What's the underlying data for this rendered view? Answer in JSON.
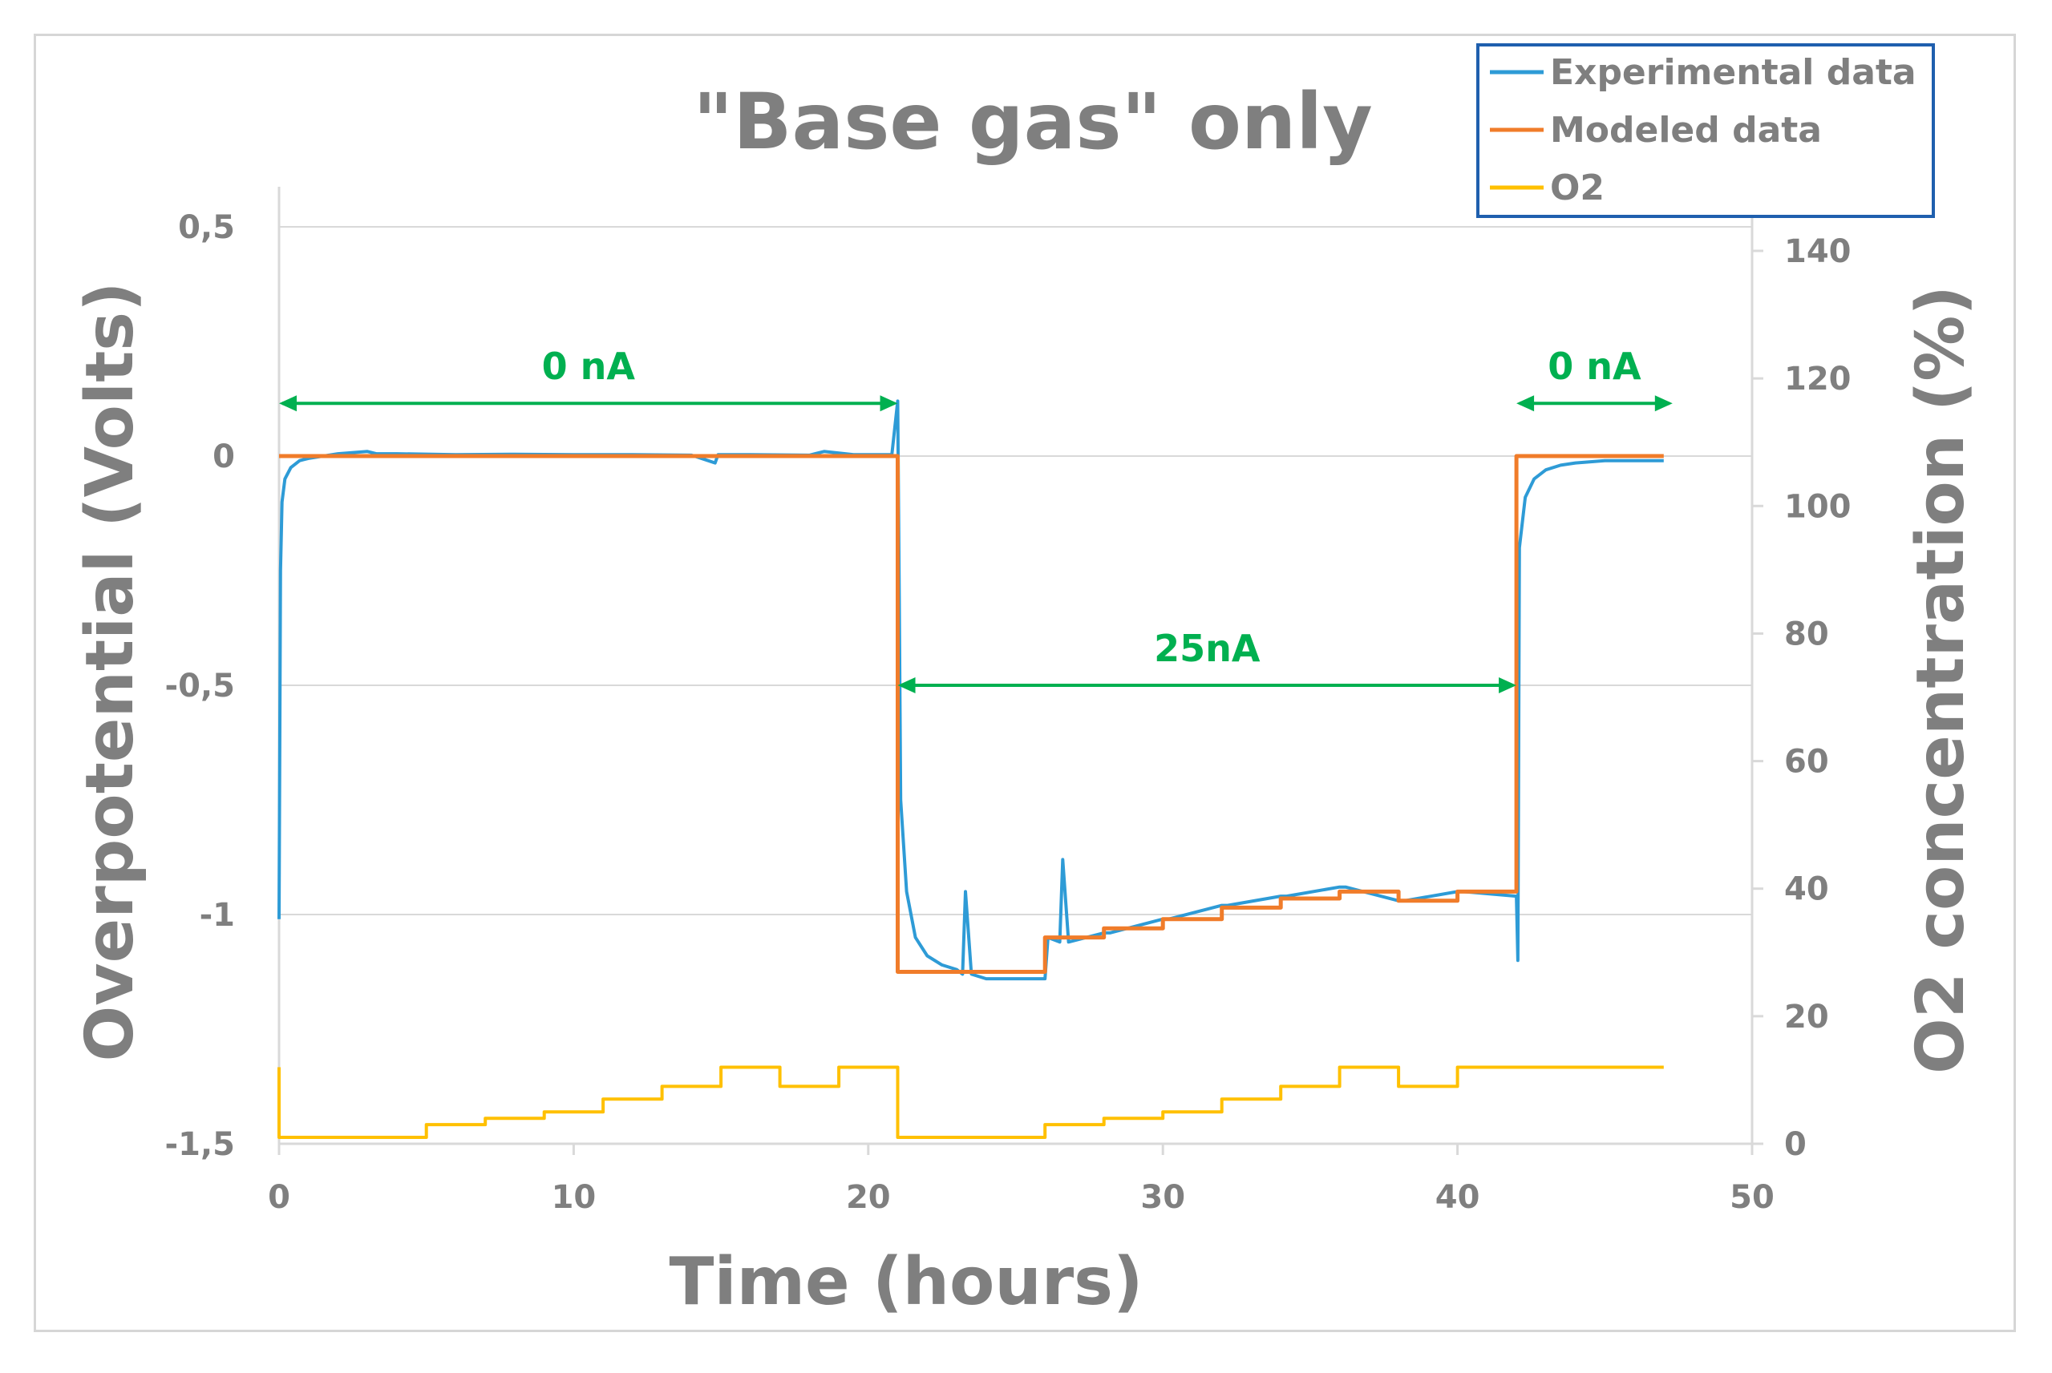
{
  "chart_data": {
    "type": "line",
    "title": "\"Base gas\" only",
    "xlabel": "Time (hours)",
    "ylabel": "Overpotential (Volts)",
    "y2label": "O2 concentration (%)",
    "xlim": [
      0,
      50
    ],
    "ylim": [
      -1.5,
      0.5
    ],
    "y2lim": [
      0,
      140
    ],
    "x_ticks": [
      "0",
      "10",
      "20",
      "30",
      "40",
      "50"
    ],
    "y_ticks": [
      "0,5",
      "0",
      "-0,5",
      "-1",
      "-1,5"
    ],
    "y2_ticks": [
      "140",
      "120",
      "100",
      "80",
      "60",
      "40",
      "20",
      "0"
    ],
    "grid": "horizontal",
    "legend_position": "top-right",
    "colors": {
      "experimental": "#2e9bd6",
      "modeled": "#f07c2a",
      "o2": "#ffc000",
      "annotation": "#00b050",
      "axis_text": "#7f7f7f",
      "grid": "#d9d9d9",
      "legend_border": "#1f5fae"
    },
    "series": [
      {
        "name": "Experimental data",
        "axis": "left",
        "x": [
          0,
          0.05,
          0.1,
          0.2,
          0.4,
          0.7,
          1.0,
          1.5,
          2.0,
          3.0,
          3.3,
          4.0,
          6.0,
          8.0,
          10.0,
          12.0,
          14.0,
          14.8,
          14.9,
          16.0,
          18.0,
          18.5,
          19.5,
          20.8,
          21.0,
          21.05,
          21.1,
          21.3,
          21.6,
          22.0,
          22.5,
          23.0,
          23.2,
          23.3,
          23.5,
          24.0,
          25.0,
          26.0,
          26.1,
          26.5,
          26.6,
          26.8,
          28.0,
          28.2,
          30.0,
          30.2,
          32.0,
          32.2,
          34.0,
          34.2,
          36.0,
          36.2,
          38.0,
          38.2,
          40.0,
          40.2,
          42.0,
          42.05,
          42.1,
          42.3,
          42.6,
          43.0,
          43.5,
          44.0,
          45.0,
          46.0,
          47.0
        ],
        "values": [
          -1.01,
          -0.25,
          -0.1,
          -0.05,
          -0.025,
          -0.01,
          -0.005,
          0.0,
          0.005,
          0.01,
          0.005,
          0.005,
          0.003,
          0.004,
          0.003,
          0.003,
          0.002,
          -0.015,
          0.003,
          0.003,
          0.002,
          0.01,
          0.003,
          0.003,
          0.12,
          -0.3,
          -0.75,
          -0.95,
          -1.05,
          -1.09,
          -1.11,
          -1.12,
          -1.13,
          -0.95,
          -1.13,
          -1.14,
          -1.14,
          -1.14,
          -1.05,
          -1.06,
          -0.88,
          -1.06,
          -1.04,
          -1.04,
          -1.01,
          -1.01,
          -0.98,
          -0.98,
          -0.96,
          -0.96,
          -0.94,
          -0.94,
          -0.97,
          -0.97,
          -0.95,
          -0.95,
          -0.96,
          -1.1,
          -0.2,
          -0.09,
          -0.05,
          -0.03,
          -0.02,
          -0.015,
          -0.01,
          -0.01,
          -0.01
        ]
      },
      {
        "name": "Modeled data",
        "axis": "left",
        "x": [
          0,
          21.0,
          21.0,
          26.0,
          26.0,
          28.0,
          28.0,
          30.0,
          30.0,
          32.0,
          32.0,
          34.0,
          34.0,
          36.0,
          36.0,
          38.0,
          38.0,
          40.0,
          40.0,
          42.0,
          42.0,
          47.0
        ],
        "values": [
          0,
          0,
          -1.125,
          -1.125,
          -1.05,
          -1.05,
          -1.03,
          -1.03,
          -1.01,
          -1.01,
          -0.985,
          -0.985,
          -0.965,
          -0.965,
          -0.95,
          -0.95,
          -0.97,
          -0.97,
          -0.95,
          -0.95,
          0,
          0
        ]
      },
      {
        "name": "O2",
        "axis": "right",
        "x": [
          0,
          0,
          5,
          5,
          7,
          7,
          9,
          9,
          11,
          11,
          13,
          13,
          15,
          15,
          17,
          17,
          19,
          19,
          21,
          21,
          26,
          26,
          28,
          28,
          30,
          30,
          32,
          32,
          34,
          34,
          36,
          36,
          38,
          38,
          40,
          40,
          42,
          42,
          47
        ],
        "values": [
          12,
          1,
          1,
          3,
          3,
          4,
          4,
          5,
          5,
          7,
          7,
          9,
          9,
          12,
          12,
          9,
          9,
          12,
          12,
          1,
          1,
          3,
          3,
          4,
          4,
          5,
          5,
          7,
          7,
          9,
          9,
          12,
          12,
          9,
          9,
          12,
          12,
          12,
          12
        ]
      }
    ],
    "annotations": [
      {
        "text": "0 nA",
        "x_start": 0,
        "x_end": 21,
        "y": 0.115
      },
      {
        "text": "25nA",
        "x_start": 21,
        "x_end": 42,
        "y": -0.5
      },
      {
        "text": "0 nA",
        "x_start": 42,
        "x_end": 47.3,
        "y": 0.115
      }
    ]
  }
}
